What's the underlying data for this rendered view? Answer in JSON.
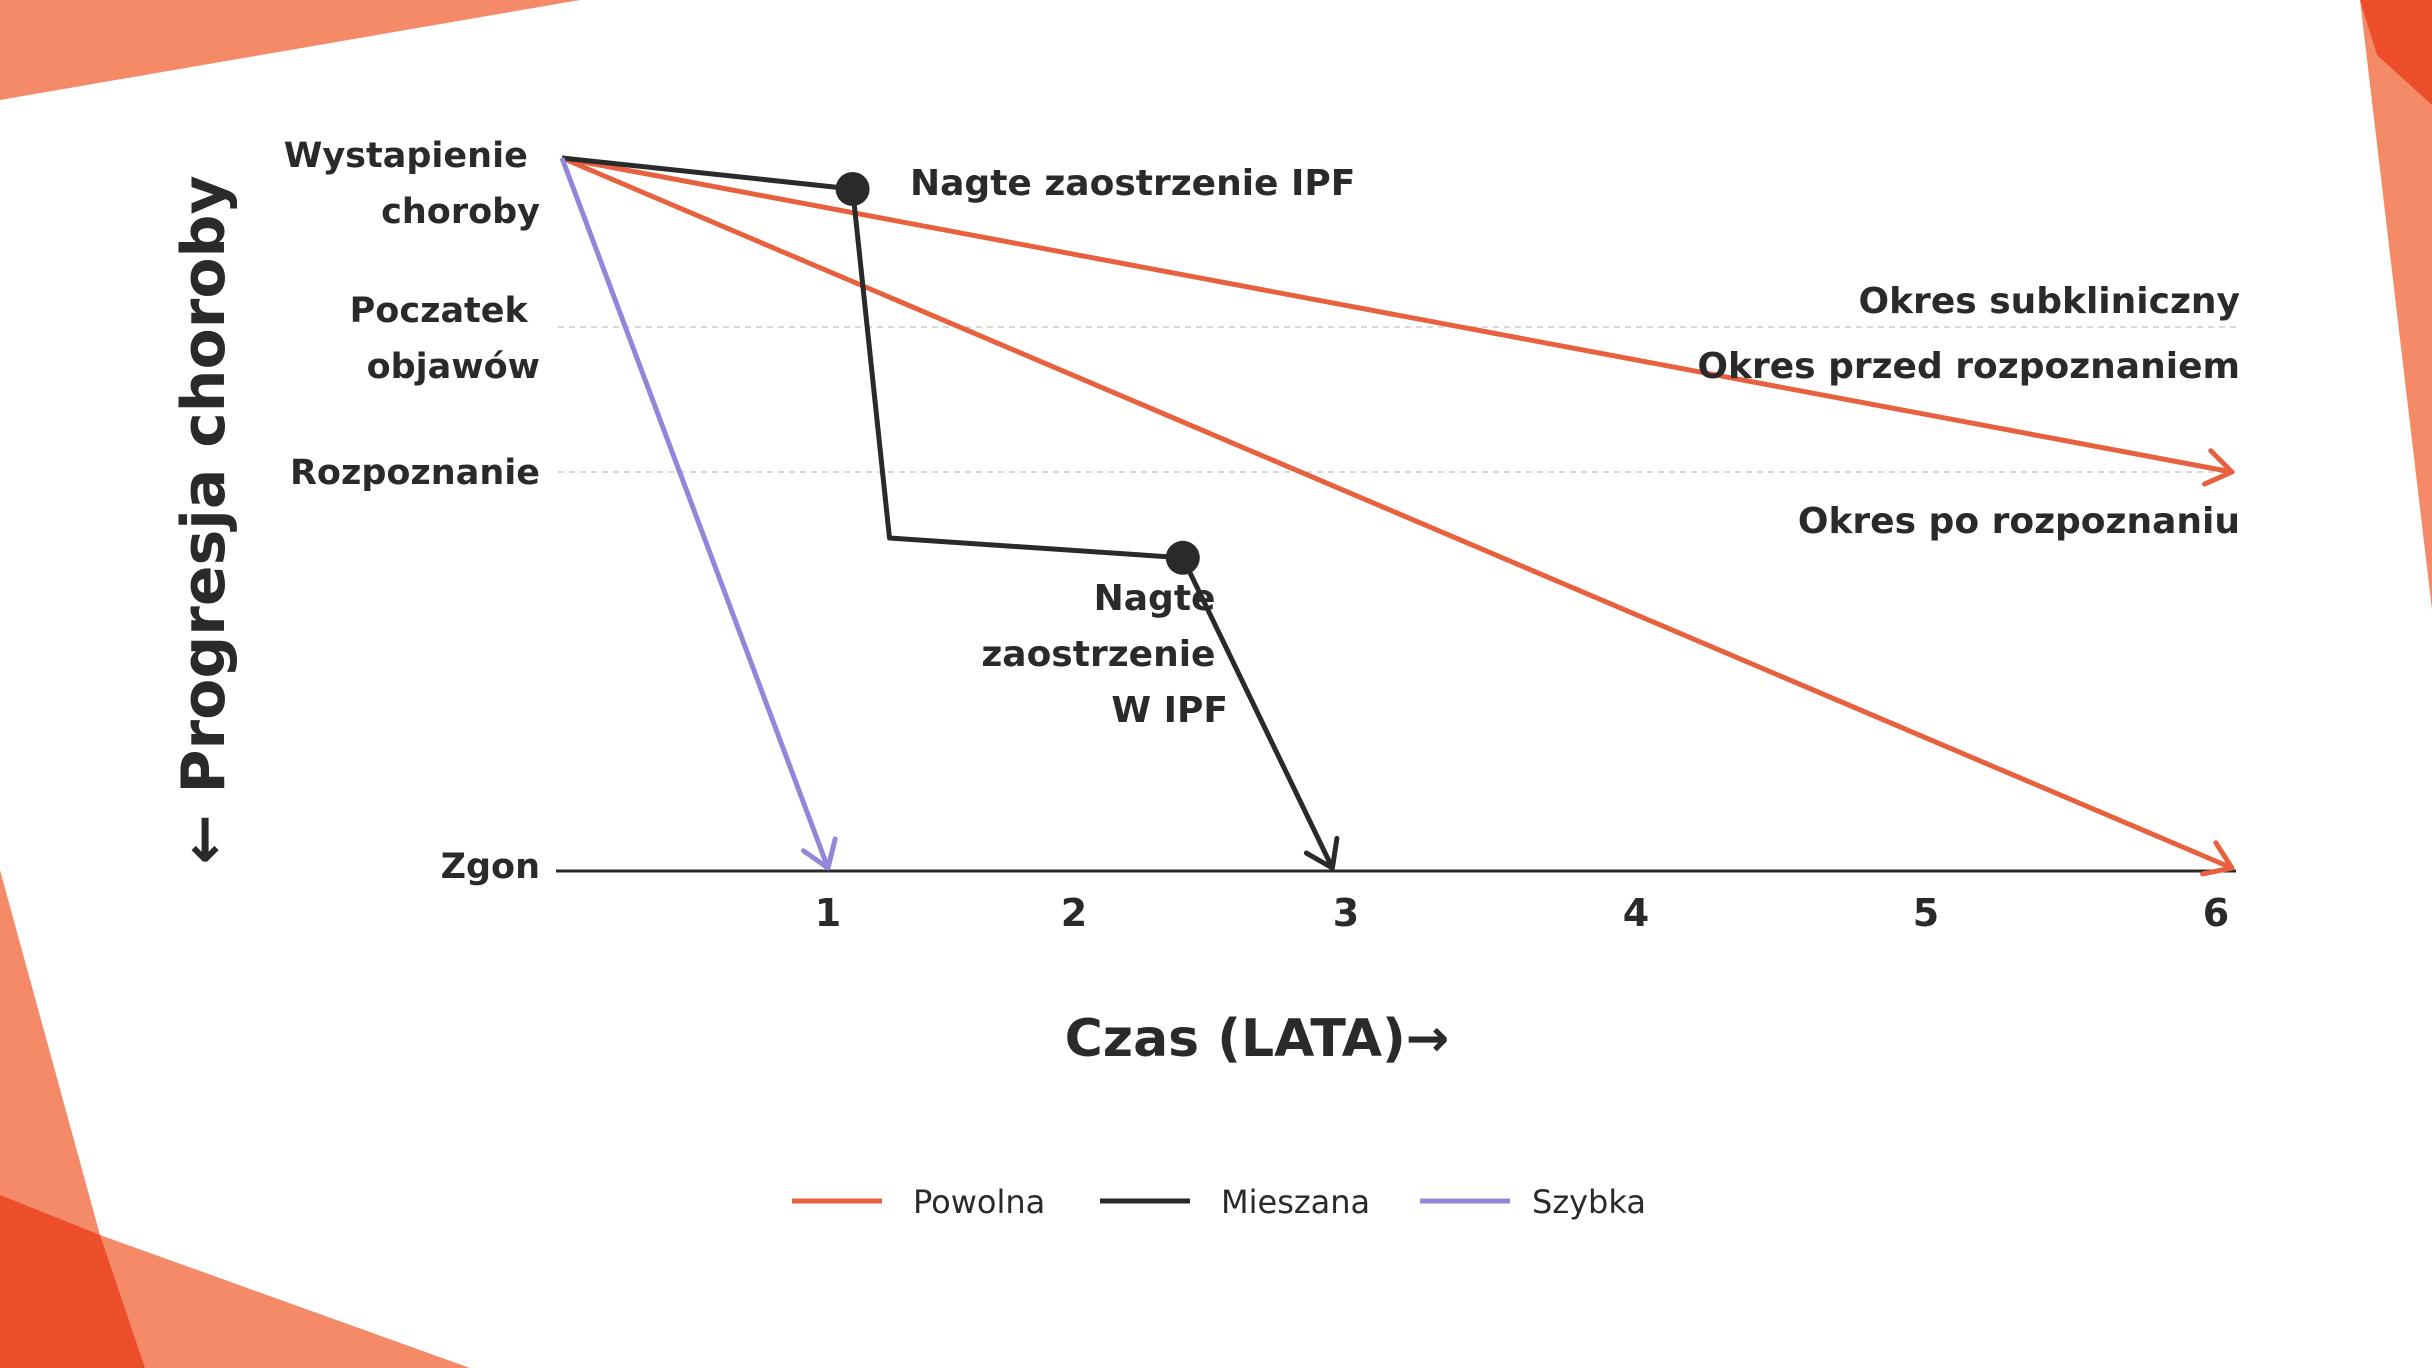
{
  "chart_data": {
    "type": "line",
    "colors": {
      "slow": "#e8613f",
      "mixed": "#2a2a2a",
      "rapid": "#9385d9",
      "decor_light": "#f48a68",
      "decor_dark": "#ec4e2c",
      "guide": "#d9d9d9"
    },
    "ylabel": "← Progresja choroby",
    "xlabel": "Czas (LATA)→",
    "x_ticks": [
      "1",
      "2",
      "3",
      "4",
      "5",
      "6"
    ],
    "xlim": [
      0,
      6
    ],
    "y_levels": [
      {
        "id": "onset",
        "lines": [
          "Wystapienie",
          "choroby"
        ],
        "value": 0
      },
      {
        "id": "symptoms",
        "lines": [
          "Poczatek",
          "objawów"
        ],
        "value": 1
      },
      {
        "id": "diagnosis",
        "lines": [
          "Rozpoznanie"
        ],
        "value": 2
      },
      {
        "id": "death",
        "lines": [
          "Zgon"
        ],
        "value": 5
      }
    ],
    "ylim": [
      0,
      5
    ],
    "series": [
      {
        "name": "Powolna",
        "key": "slow",
        "points": [
          [
            0,
            0
          ],
          [
            6,
            2
          ]
        ]
      },
      {
        "name": "Powolna",
        "key": "slow",
        "points": [
          [
            0,
            0
          ],
          [
            6,
            5
          ]
        ]
      },
      {
        "name": "Mieszana",
        "key": "mixed",
        "points": [
          [
            0,
            0
          ],
          [
            1.1,
            0.18
          ],
          [
            1.25,
            2.5
          ],
          [
            2.4,
            2.65
          ],
          [
            2.95,
            5
          ]
        ],
        "markers": [
          [
            1.1,
            0.18
          ],
          [
            2.4,
            2.65
          ]
        ]
      },
      {
        "name": "Szybka",
        "key": "rapid",
        "points": [
          [
            0,
            0
          ],
          [
            1,
            5
          ]
        ]
      }
    ],
    "annotations": [
      {
        "id": "exacerbation1",
        "lines": [
          "Nagte zaostrzenie IPF"
        ]
      },
      {
        "id": "exacerbation2",
        "lines": [
          "Nagte",
          "zaostrzenie",
          "W IPF"
        ]
      },
      {
        "id": "subclinical",
        "lines": [
          "Okres subkliniczny"
        ]
      },
      {
        "id": "pre_diagnosis",
        "lines": [
          "Okres przed rozpoznaniem"
        ]
      },
      {
        "id": "post_diagnosis",
        "lines": [
          "Okres po rozpoznaniu"
        ]
      }
    ],
    "legend": {
      "position": "bottom-center",
      "items": [
        {
          "label": "Powolna",
          "key": "slow"
        },
        {
          "label": "Mieszana",
          "key": "mixed"
        },
        {
          "label": "Szybka",
          "key": "rapid"
        }
      ]
    }
  }
}
